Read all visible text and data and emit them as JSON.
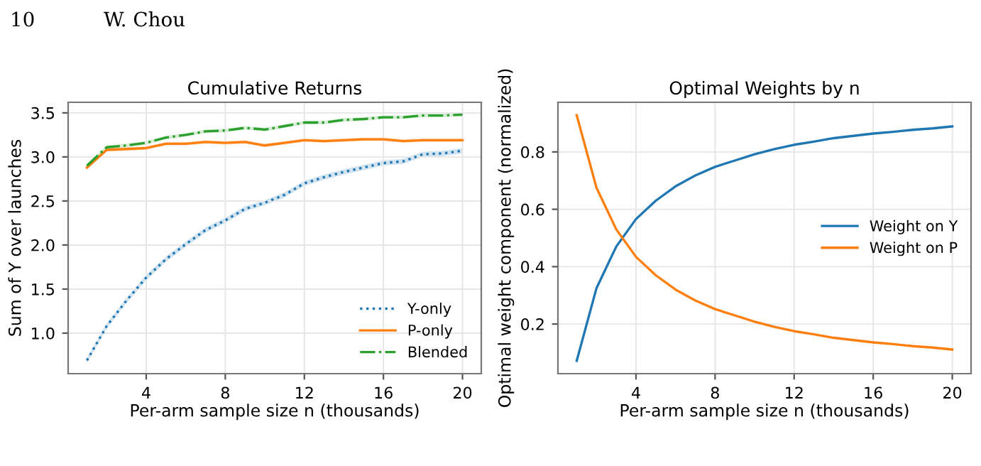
{
  "chart_data": [
    {
      "type": "line",
      "title": "Cumulative Returns",
      "xlabel": "Per-arm sample size n (thousands)",
      "ylabel": "Sum of Y over launches",
      "annotations": [
        "10",
        "W. Chou"
      ],
      "x": [
        1,
        2,
        3,
        4,
        5,
        6,
        7,
        8,
        9,
        10,
        11,
        12,
        13,
        14,
        15,
        16,
        17,
        18,
        19,
        20
      ],
      "xlim": [
        0.05,
        20.95
      ],
      "xticks": [
        4,
        8,
        12,
        16,
        20
      ],
      "ylim": [
        0.54,
        3.62
      ],
      "yticks": [
        {
          "value": 1,
          "label": "1.0"
        },
        1.5,
        {
          "value": 2,
          "label": "2.0"
        },
        2.5,
        {
          "value": 3,
          "label": "3.0"
        },
        3.5
      ],
      "grid": true,
      "legend": "lower right",
      "series": [
        {
          "name": "Y-only",
          "color": "#1f77b4",
          "line_style": "dotted",
          "values": [
            0.69,
            1.08,
            1.37,
            1.63,
            1.84,
            2.01,
            2.17,
            2.28,
            2.41,
            2.48,
            2.57,
            2.7,
            2.77,
            2.83,
            2.88,
            2.93,
            2.95,
            3.03,
            3.04,
            3.07
          ],
          "lower": [
            0.66,
            1.05,
            1.34,
            1.6,
            1.81,
            1.98,
            2.14,
            2.25,
            2.38,
            2.45,
            2.54,
            2.67,
            2.74,
            2.8,
            2.85,
            2.9,
            2.92,
            3.0,
            3.01,
            3.04
          ],
          "upper": [
            0.72,
            1.11,
            1.4,
            1.66,
            1.87,
            2.04,
            2.2,
            2.31,
            2.44,
            2.51,
            2.6,
            2.73,
            2.8,
            2.86,
            2.91,
            2.96,
            2.98,
            3.06,
            3.07,
            3.1
          ]
        },
        {
          "name": "P-only",
          "color": "#ff7f0e",
          "line_style": "solid",
          "values": [
            2.88,
            3.08,
            3.09,
            3.1,
            3.15,
            3.15,
            3.17,
            3.16,
            3.17,
            3.13,
            3.16,
            3.19,
            3.18,
            3.19,
            3.2,
            3.2,
            3.18,
            3.19,
            3.19,
            3.19
          ],
          "lower": [
            2.86,
            3.06,
            3.07,
            3.08,
            3.13,
            3.13,
            3.15,
            3.14,
            3.15,
            3.11,
            3.14,
            3.17,
            3.16,
            3.17,
            3.18,
            3.18,
            3.16,
            3.17,
            3.17,
            3.17
          ],
          "upper": [
            2.9,
            3.1,
            3.11,
            3.12,
            3.17,
            3.17,
            3.19,
            3.18,
            3.19,
            3.15,
            3.18,
            3.21,
            3.2,
            3.21,
            3.22,
            3.22,
            3.2,
            3.21,
            3.21,
            3.21
          ]
        },
        {
          "name": "Blended",
          "color": "#2ca02c",
          "line_style": "dashdot",
          "values": [
            2.9,
            3.11,
            3.13,
            3.16,
            3.22,
            3.25,
            3.29,
            3.3,
            3.33,
            3.31,
            3.35,
            3.39,
            3.39,
            3.42,
            3.43,
            3.45,
            3.45,
            3.47,
            3.47,
            3.48
          ],
          "lower": [
            2.88,
            3.09,
            3.11,
            3.14,
            3.2,
            3.23,
            3.27,
            3.28,
            3.31,
            3.29,
            3.33,
            3.37,
            3.37,
            3.4,
            3.41,
            3.43,
            3.43,
            3.45,
            3.45,
            3.46
          ],
          "upper": [
            2.92,
            3.13,
            3.15,
            3.18,
            3.24,
            3.27,
            3.31,
            3.32,
            3.35,
            3.33,
            3.37,
            3.41,
            3.41,
            3.44,
            3.45,
            3.47,
            3.47,
            3.49,
            3.49,
            3.5
          ]
        }
      ]
    },
    {
      "type": "line",
      "title": "Optimal Weights by n",
      "xlabel": "Per-arm sample size n (thousands)",
      "ylabel": "Optimal weight component (normalized)",
      "x": [
        1,
        2,
        3,
        4,
        5,
        6,
        7,
        8,
        9,
        10,
        11,
        12,
        13,
        14,
        15,
        16,
        17,
        18,
        19,
        20
      ],
      "xlim": [
        0.05,
        20.95
      ],
      "xticks": [
        4,
        8,
        12,
        16,
        20
      ],
      "ylim": [
        0.027,
        0.973
      ],
      "yticks": [
        0.2,
        0.4,
        0.6,
        0.8
      ],
      "grid": true,
      "legend": "center right",
      "series": [
        {
          "name": "Weight on Y",
          "color": "#1f77b4",
          "values": [
            0.072,
            0.325,
            0.47,
            0.566,
            0.63,
            0.68,
            0.718,
            0.748,
            0.77,
            0.792,
            0.81,
            0.825,
            0.836,
            0.848,
            0.856,
            0.864,
            0.87,
            0.877,
            0.882,
            0.889
          ]
        },
        {
          "name": "Weight on P",
          "color": "#ff7f0e",
          "values": [
            0.928,
            0.675,
            0.53,
            0.434,
            0.37,
            0.32,
            0.282,
            0.252,
            0.23,
            0.208,
            0.19,
            0.175,
            0.164,
            0.152,
            0.144,
            0.136,
            0.13,
            0.123,
            0.118,
            0.111
          ]
        }
      ]
    }
  ]
}
